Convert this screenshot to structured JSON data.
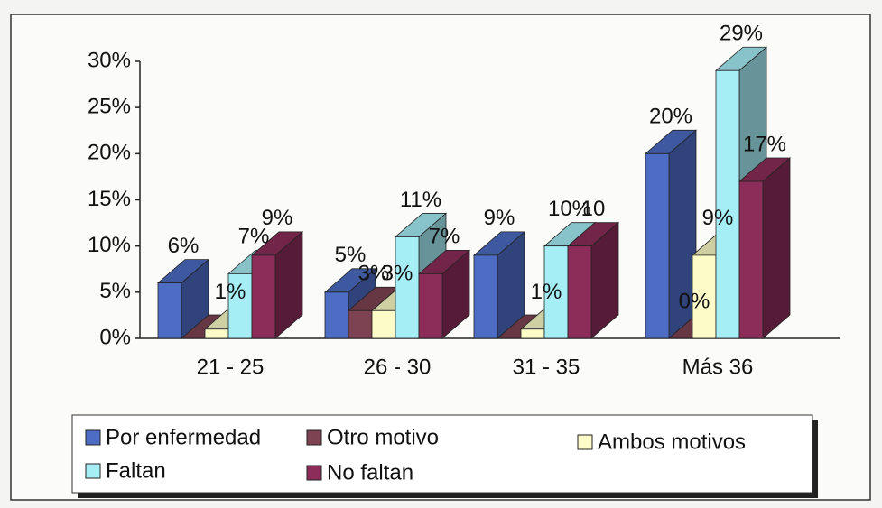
{
  "chart_data": {
    "type": "bar3d",
    "categories": [
      "21 - 25",
      "26 - 30",
      "31 - 35",
      "Más 36"
    ],
    "series": [
      {
        "name": "Por enfermedad",
        "color": "#4d6cc4",
        "values": [
          6,
          5,
          9,
          20
        ],
        "value_labels": [
          "6%",
          "5%",
          "9%",
          "20%"
        ]
      },
      {
        "name": "Otro motivo",
        "color": "#7e4352",
        "values": [
          0,
          3,
          0,
          0
        ],
        "value_labels": [
          null,
          "3%",
          null,
          "0%"
        ]
      },
      {
        "name": "Ambos motivos",
        "color": "#fdfcc8",
        "values": [
          1,
          3,
          1,
          9
        ],
        "value_labels": [
          "1%",
          "3%",
          "1%",
          "9%"
        ]
      },
      {
        "name": "Faltan",
        "color": "#a6eef6",
        "values": [
          7,
          11,
          10,
          29
        ],
        "value_labels": [
          "7%",
          "11%",
          "10%",
          "29%"
        ]
      },
      {
        "name": "No faltan",
        "color": "#8b2d58",
        "values": [
          9,
          7,
          10,
          17
        ],
        "value_labels": [
          "9%",
          "7%",
          "10",
          "17%"
        ]
      }
    ],
    "ylim": [
      0,
      30
    ],
    "yticks": [
      {
        "value": 0,
        "label": "0%"
      },
      {
        "value": 5,
        "label": "5%"
      },
      {
        "value": 10,
        "label": "10%"
      },
      {
        "value": 15,
        "label": "15%"
      },
      {
        "value": 20,
        "label": "20%"
      },
      {
        "value": 25,
        "label": "25%"
      },
      {
        "value": 30,
        "label": "30%"
      }
    ],
    "legend": "bottom"
  }
}
